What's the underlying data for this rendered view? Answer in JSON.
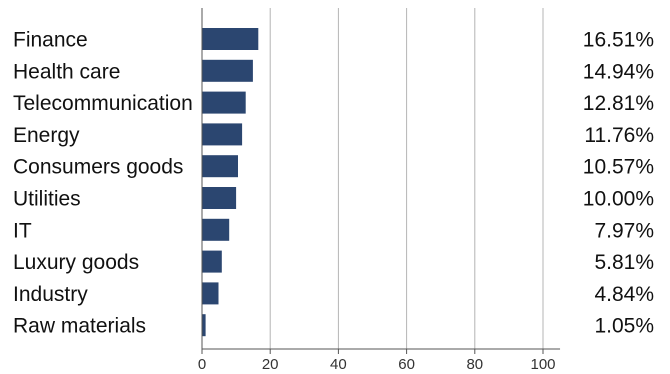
{
  "chart_data": {
    "type": "bar",
    "orientation": "horizontal",
    "categories": [
      "Finance",
      "Health care",
      "Telecommunication",
      "Energy",
      "Consumers goods",
      "Utilities",
      "IT",
      "Luxury goods",
      "Industry",
      "Raw materials"
    ],
    "values": [
      16.51,
      14.94,
      12.81,
      11.76,
      10.57,
      10.0,
      7.97,
      5.81,
      4.84,
      1.05
    ],
    "value_labels": [
      "16.51%",
      "14.94%",
      "12.81%",
      "11.76%",
      "10.57%",
      "10.00%",
      "7.97%",
      "5.81%",
      "4.84%",
      "1.05%"
    ],
    "x_ticks": [
      "0",
      "20",
      "40",
      "60",
      "80",
      "100"
    ],
    "xlim": [
      0,
      105
    ],
    "grid": "vertical",
    "legend": "none",
    "title": "",
    "xlabel": "",
    "ylabel": ""
  },
  "colors": {
    "bar": "#2b4670",
    "grid": "#b4b4b4",
    "axis": "#555555",
    "text": "#111111"
  }
}
